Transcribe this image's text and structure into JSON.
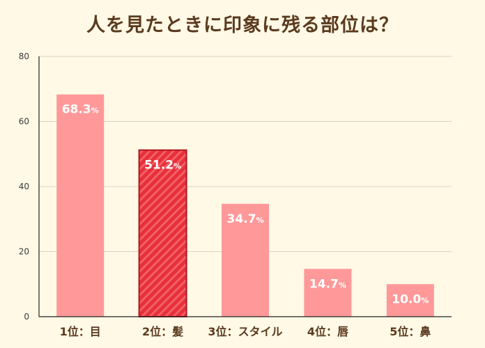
{
  "chart_data": {
    "type": "bar",
    "title": "人を見たときに印象に残る部位は？",
    "categories": [
      "1位：目",
      "2位：髪",
      "3位：スタイル",
      "4位：唇",
      "5位：鼻"
    ],
    "values": [
      68.3,
      51.2,
      34.7,
      14.7,
      10.0
    ],
    "value_labels": [
      "68.3",
      "51.2",
      "34.7",
      "14.7",
      "10.0"
    ],
    "unit": "%",
    "highlight_index": 1,
    "ylim": [
      0,
      80
    ],
    "yticks": [
      0,
      20,
      40,
      60,
      80
    ],
    "xlabel": "",
    "ylabel": "",
    "grid": true,
    "colors": {
      "bar": "#FF9999",
      "highlight_bar": "#E8303A",
      "highlight_stripe": "#F26068",
      "highlight_border": "#B01822",
      "grid": "#D8D2C0",
      "axis": "#222222",
      "background": "#FFF9E6",
      "title": "#5A3A1E"
    }
  }
}
